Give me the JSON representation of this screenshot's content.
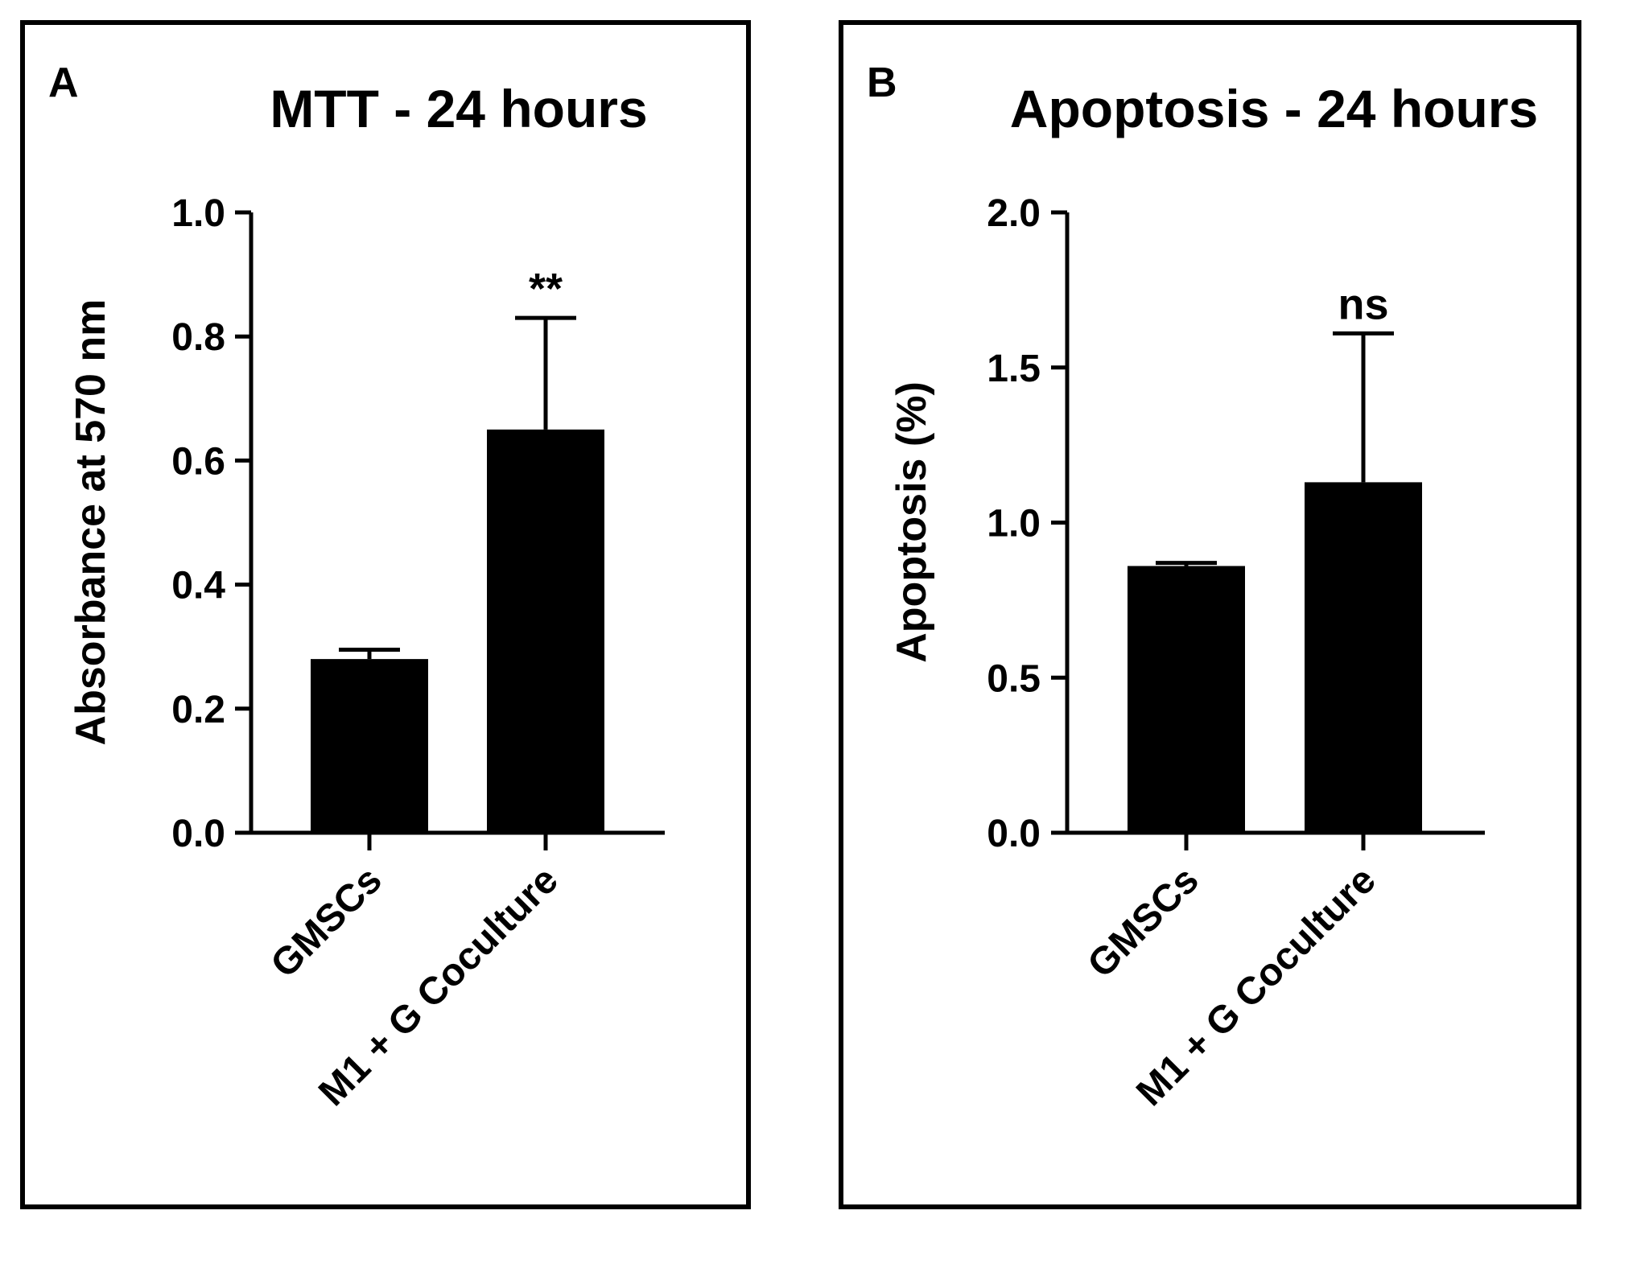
{
  "chart_data": [
    {
      "panel_label": "A",
      "title": "MTT - 24 hours",
      "type": "bar",
      "ylabel": "Absorbance at 570 nm",
      "xlabel": "",
      "categories": [
        "GMSCs",
        "M1 + G Coculture"
      ],
      "values": [
        0.28,
        0.65
      ],
      "error_upper": [
        0.295,
        0.83
      ],
      "significance": [
        "",
        "**"
      ],
      "ylim": [
        0,
        1.0
      ],
      "yticks": [
        0.0,
        0.2,
        0.4,
        0.6,
        0.8,
        1.0
      ],
      "ytick_labels": [
        "0.0",
        "0.2",
        "0.4",
        "0.6",
        "0.8",
        "1.0"
      ],
      "bar_color": "#000000",
      "grid": false
    },
    {
      "panel_label": "B",
      "title": "Apoptosis - 24 hours",
      "type": "bar",
      "ylabel": "Apoptosis (%)",
      "xlabel": "",
      "categories": [
        "GMSCs",
        "M1 + G Coculture"
      ],
      "values": [
        0.86,
        1.13
      ],
      "error_upper": [
        0.87,
        1.61
      ],
      "significance": [
        "",
        "ns"
      ],
      "ylim": [
        0,
        2.0
      ],
      "yticks": [
        0.0,
        0.5,
        1.0,
        1.5,
        2.0
      ],
      "ytick_labels": [
        "0.0",
        "0.5",
        "1.0",
        "1.5",
        "2.0"
      ],
      "bar_color": "#000000",
      "grid": false
    }
  ]
}
